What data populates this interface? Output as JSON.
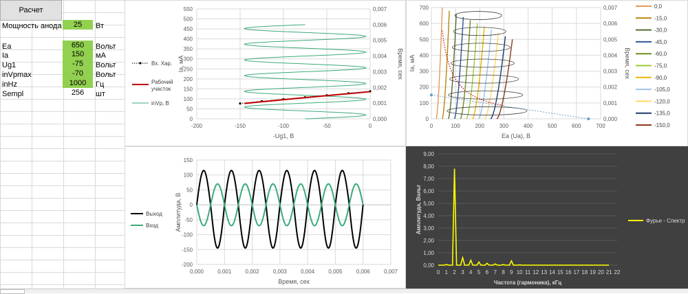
{
  "button": {
    "label": "Расчет"
  },
  "params": [
    {
      "label": "Мощность анода",
      "value": "25",
      "unit": "Вт",
      "green": true
    },
    {
      "label": "Ea",
      "value": "650",
      "unit": "Вольт",
      "green": true
    },
    {
      "label": "Ia",
      "value": "150",
      "unit": "мА",
      "green": true
    },
    {
      "label": "Ug1",
      "value": "-75",
      "unit": "Вольт",
      "green": true
    },
    {
      "label": "inVpmax",
      "value": "-70",
      "unit": "Вольт",
      "green": true
    },
    {
      "label": "inHz",
      "value": "1000",
      "unit": "Гц",
      "green": true
    },
    {
      "label": "Sempl",
      "value": "256",
      "unit": "шт",
      "green": false
    }
  ],
  "colors": {
    "green_cell": "#92d050",
    "teal": "#3aaa7a",
    "red": "#c00000",
    "yellow": "#ffff00",
    "dark_bg": "#404040"
  },
  "chart_data": [
    {
      "type": "line",
      "xlabel": "-Ug1, В",
      "ylabel": "Ia, мА",
      "y2label": "Время, сек",
      "xlim": [
        -200,
        0
      ],
      "xticks": [
        "-200",
        "-150",
        "-100",
        "-50",
        "0"
      ],
      "ylim": [
        0,
        550
      ],
      "yticks": [
        "0",
        "50",
        "100",
        "150",
        "200",
        "250",
        "300",
        "350",
        "400",
        "450",
        "500",
        "550"
      ],
      "y2lim": [
        0,
        0.007
      ],
      "y2ticks": [
        "0,000",
        "0,001",
        "0,002",
        "0,003",
        "0,004",
        "0,005",
        "0,006",
        "0,007"
      ],
      "legend": [
        "Вх. Хар.",
        "Рабочий участок",
        "inVp, В"
      ],
      "series": [
        {
          "name": "Вх. Хар.",
          "x": [
            -150,
            -125,
            -100,
            -75,
            -50,
            -25,
            0
          ],
          "y": [
            77,
            88,
            98,
            108,
            118,
            128,
            138
          ]
        },
        {
          "name": "Рабочий участок",
          "x": [
            -145,
            -75,
            0
          ],
          "y": [
            77,
            106,
            136
          ]
        },
        {
          "name": "inVp, В",
          "amplitude": 70,
          "offset": -75,
          "periods": 6,
          "tmax": 0.006
        }
      ]
    },
    {
      "type": "line",
      "xlabel": "Ea (Ua), В",
      "ylabel": "Ia, мА",
      "y2label": "Время, сек",
      "xlim": [
        0,
        700
      ],
      "xticks": [
        "0",
        "100",
        "200",
        "300",
        "400",
        "500",
        "600",
        "700"
      ],
      "ylim": [
        0,
        700
      ],
      "yticks": [
        "0",
        "100",
        "200",
        "300",
        "400",
        "500",
        "600",
        "700"
      ],
      "y2lim": [
        0,
        0.007
      ],
      "y2ticks": [
        "0,000",
        "0,001",
        "0,002",
        "0,003",
        "0,004",
        "0,005",
        "0,006",
        "0,007"
      ],
      "legend": [
        "0,0",
        "-15,0",
        "-30,0",
        "-45,0",
        "-60,0",
        "-75,0",
        "-90,0",
        "-105,0",
        "-120,0",
        "-135,0",
        "-150,0"
      ],
      "legend_colors": [
        "#e39a57",
        "#b8860b",
        "#556b2f",
        "#2f5597",
        "#6b8e23",
        "#9acd32",
        "#e6b800",
        "#9dc3e6",
        "#ffd966",
        "#1f3864",
        "#8b3a1a"
      ],
      "curve_offsets": [
        20,
        45,
        70,
        95,
        120,
        145,
        170,
        195,
        220,
        245,
        270
      ],
      "load_line": {
        "x": [
          0,
          650
        ],
        "y": [
          150,
          0
        ]
      },
      "pmax_curve": {
        "power_w": 25
      }
    },
    {
      "type": "line",
      "xlabel": "Время, сек",
      "ylabel": "Амплитуда, В",
      "xlim": [
        0,
        0.007
      ],
      "xticks": [
        "0,000",
        "0,001",
        "0,002",
        "0,003",
        "0,004",
        "0,005",
        "0,006",
        "0,007"
      ],
      "ylim": [
        -200,
        150
      ],
      "yticks": [
        "-200",
        "-150",
        "-100",
        "-50",
        "0",
        "50",
        "100",
        "150"
      ],
      "legend": [
        "Выход",
        "Вход"
      ],
      "series": [
        {
          "name": "Выход",
          "amplitude_pos": 115,
          "amplitude_neg": -145,
          "periods": 6,
          "tmax": 0.006,
          "color": "#000000"
        },
        {
          "name": "Вход",
          "amplitude": 70,
          "periods": 6,
          "tmax": 0.006,
          "color": "#3aaa7a"
        }
      ]
    },
    {
      "type": "line",
      "xlabel": "Частота (гармоника), кГц",
      "ylabel": "Амплитуда, Вольт",
      "xlim": [
        0,
        22
      ],
      "xticks": [
        "0",
        "1",
        "2",
        "3",
        "4",
        "5",
        "6",
        "7",
        "8",
        "9",
        "10",
        "11",
        "12",
        "13",
        "14",
        "15",
        "16",
        "17",
        "18",
        "19",
        "20",
        "21",
        "22"
      ],
      "ylim": [
        0,
        9
      ],
      "yticks": [
        "0,00",
        "1,00",
        "2,00",
        "3,00",
        "4,00",
        "5,00",
        "6,00",
        "7,00",
        "8,00",
        "9,00"
      ],
      "legend": [
        "Фурье - Спектр"
      ],
      "series": [
        {
          "name": "Фурье - Спектр",
          "x": [
            1,
            2,
            3,
            4,
            5,
            6,
            7,
            8,
            9,
            10
          ],
          "y": [
            0.05,
            7.8,
            0.6,
            0.4,
            0.25,
            0.15,
            0.1,
            0.05,
            0.35,
            0.02
          ]
        }
      ]
    }
  ]
}
